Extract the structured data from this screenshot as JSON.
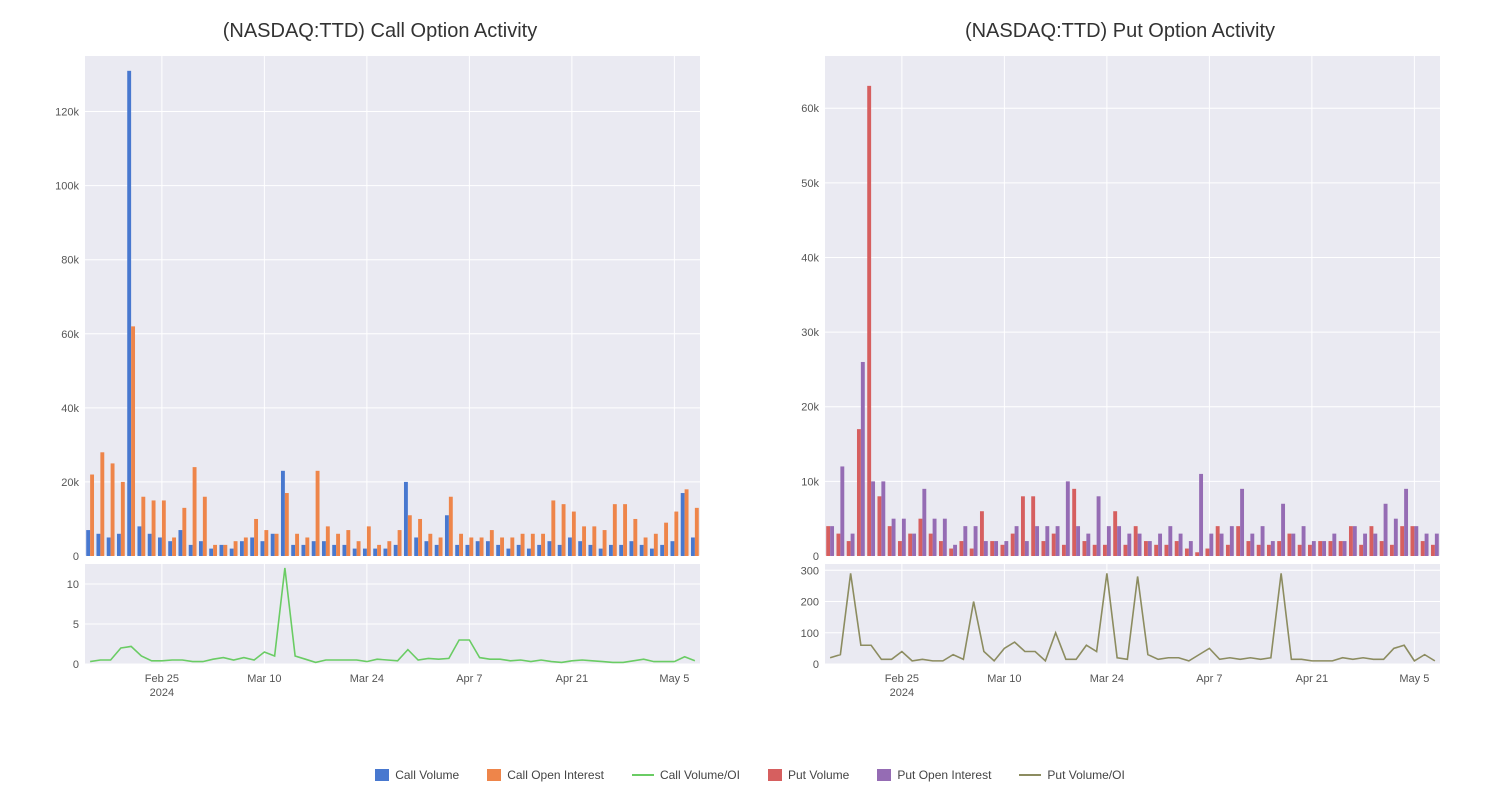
{
  "layout": {
    "background_color": "#ffffff",
    "plot_background_color": "#eaeaf2",
    "grid_color": "#ffffff",
    "text_color": "#555555",
    "title_color": "#333333",
    "title_fontsize": 20,
    "axis_fontsize": 11,
    "legend_fontsize": 12
  },
  "x_axis": {
    "n_points": 60,
    "tick_labels": [
      "Feb 25",
      "Mar 10",
      "Mar 24",
      "Apr 7",
      "Apr 21",
      "May 5"
    ],
    "tick_indices": [
      7,
      17,
      27,
      37,
      47,
      57
    ],
    "year_label": "2024",
    "year_index": 7
  },
  "call_chart": {
    "title": "(NASDAQ:TTD) Call Option Activity",
    "main": {
      "ylim": [
        0,
        135000
      ],
      "yticks": [
        0,
        20000,
        40000,
        60000,
        80000,
        100000,
        120000
      ],
      "ytick_labels": [
        "0",
        "20k",
        "40k",
        "60k",
        "80k",
        "100k",
        "120k"
      ],
      "volume_color": "#4878cf",
      "oi_color": "#ee854a",
      "volume": [
        7000,
        6000,
        5000,
        6000,
        131000,
        8000,
        6000,
        5000,
        4000,
        7000,
        3000,
        4000,
        2000,
        3000,
        2000,
        4000,
        5000,
        4000,
        6000,
        23000,
        3000,
        3000,
        4000,
        4000,
        3000,
        3000,
        2000,
        2000,
        2000,
        2000,
        3000,
        20000,
        5000,
        4000,
        3000,
        11000,
        3000,
        3000,
        4000,
        4000,
        3000,
        2000,
        3000,
        2000,
        3000,
        4000,
        3000,
        5000,
        4000,
        3000,
        2000,
        3000,
        3000,
        4000,
        3000,
        2000,
        3000,
        4000,
        17000,
        5000
      ],
      "open_interest": [
        22000,
        28000,
        25000,
        20000,
        62000,
        16000,
        15000,
        15000,
        5000,
        13000,
        24000,
        16000,
        3000,
        3000,
        4000,
        5000,
        10000,
        7000,
        6000,
        17000,
        6000,
        5000,
        23000,
        8000,
        6000,
        7000,
        4000,
        8000,
        3000,
        4000,
        7000,
        11000,
        10000,
        6000,
        5000,
        16000,
        6000,
        5000,
        5000,
        7000,
        5000,
        5000,
        6000,
        6000,
        6000,
        15000,
        14000,
        12000,
        8000,
        8000,
        7000,
        14000,
        14000,
        10000,
        5000,
        6000,
        9000,
        12000,
        18000,
        13000
      ]
    },
    "ratio": {
      "ylim": [
        0,
        12.5
      ],
      "yticks": [
        0,
        5,
        10
      ],
      "ytick_labels": [
        "0",
        "5",
        "10"
      ],
      "line_color": "#6acc64",
      "values": [
        0.3,
        0.5,
        0.5,
        2.0,
        2.2,
        1.0,
        0.4,
        0.4,
        0.5,
        0.5,
        0.3,
        0.3,
        0.6,
        0.8,
        0.5,
        0.8,
        0.5,
        1.5,
        1.0,
        12.0,
        1.0,
        0.6,
        0.2,
        0.5,
        0.5,
        0.5,
        0.5,
        0.3,
        0.6,
        0.5,
        0.4,
        1.8,
        0.5,
        0.7,
        0.6,
        0.7,
        3.0,
        3.0,
        0.8,
        0.6,
        0.6,
        0.4,
        0.5,
        0.3,
        0.5,
        0.3,
        0.2,
        0.4,
        0.5,
        0.4,
        0.3,
        0.2,
        0.2,
        0.4,
        0.6,
        0.3,
        0.3,
        0.3,
        0.9,
        0.4
      ]
    }
  },
  "put_chart": {
    "title": "(NASDAQ:TTD) Put Option Activity",
    "main": {
      "ylim": [
        0,
        67000
      ],
      "yticks": [
        0,
        10000,
        20000,
        30000,
        40000,
        50000,
        60000
      ],
      "ytick_labels": [
        "0",
        "10k",
        "20k",
        "30k",
        "40k",
        "50k",
        "60k"
      ],
      "volume_color": "#d65f5f",
      "oi_color": "#956cb4",
      "volume": [
        4000,
        3000,
        2000,
        17000,
        63000,
        8000,
        4000,
        2000,
        3000,
        5000,
        3000,
        2000,
        1000,
        2000,
        1000,
        6000,
        2000,
        1500,
        3000,
        8000,
        8000,
        2000,
        3000,
        1500,
        9000,
        2000,
        1500,
        1500,
        6000,
        1500,
        4000,
        2000,
        1500,
        1500,
        2000,
        1000,
        500,
        1000,
        4000,
        1500,
        4000,
        2000,
        1500,
        1500,
        2000,
        3000,
        1500,
        1500,
        2000,
        2000,
        2000,
        4000,
        1500,
        4000,
        2000,
        1500,
        4000,
        4000,
        2000,
        1500
      ],
      "open_interest": [
        4000,
        12000,
        3000,
        26000,
        10000,
        10000,
        5000,
        5000,
        3000,
        9000,
        5000,
        5000,
        1500,
        4000,
        4000,
        2000,
        2000,
        2000,
        4000,
        2000,
        4000,
        4000,
        4000,
        10000,
        4000,
        3000,
        8000,
        4000,
        4000,
        3000,
        3000,
        2000,
        3000,
        4000,
        3000,
        2000,
        11000,
        3000,
        3000,
        4000,
        9000,
        3000,
        4000,
        2000,
        7000,
        3000,
        4000,
        2000,
        2000,
        3000,
        2000,
        4000,
        3000,
        3000,
        7000,
        5000,
        9000,
        4000,
        3000,
        3000
      ]
    },
    "ratio": {
      "ylim": [
        0,
        320
      ],
      "yticks": [
        0,
        100,
        200,
        300
      ],
      "ytick_labels": [
        "0",
        "100",
        "200",
        "300"
      ],
      "line_color": "#8c8c60",
      "values": [
        20,
        30,
        290,
        60,
        60,
        15,
        15,
        40,
        10,
        15,
        10,
        10,
        30,
        15,
        200,
        40,
        10,
        50,
        70,
        40,
        40,
        10,
        100,
        15,
        15,
        60,
        40,
        290,
        20,
        15,
        280,
        30,
        15,
        20,
        20,
        10,
        30,
        50,
        15,
        20,
        15,
        20,
        15,
        20,
        290,
        15,
        15,
        10,
        10,
        10,
        20,
        15,
        20,
        15,
        15,
        50,
        60,
        10,
        30,
        10
      ]
    }
  },
  "legend": [
    {
      "label": "Call Volume",
      "type": "rect",
      "color": "#4878cf"
    },
    {
      "label": "Call Open Interest",
      "type": "rect",
      "color": "#ee854a"
    },
    {
      "label": "Call Volume/OI",
      "type": "line",
      "color": "#6acc64"
    },
    {
      "label": "Put Volume",
      "type": "rect",
      "color": "#d65f5f"
    },
    {
      "label": "Put Open Interest",
      "type": "rect",
      "color": "#956cb4"
    },
    {
      "label": "Put Volume/OI",
      "type": "line",
      "color": "#8c8c60"
    }
  ]
}
